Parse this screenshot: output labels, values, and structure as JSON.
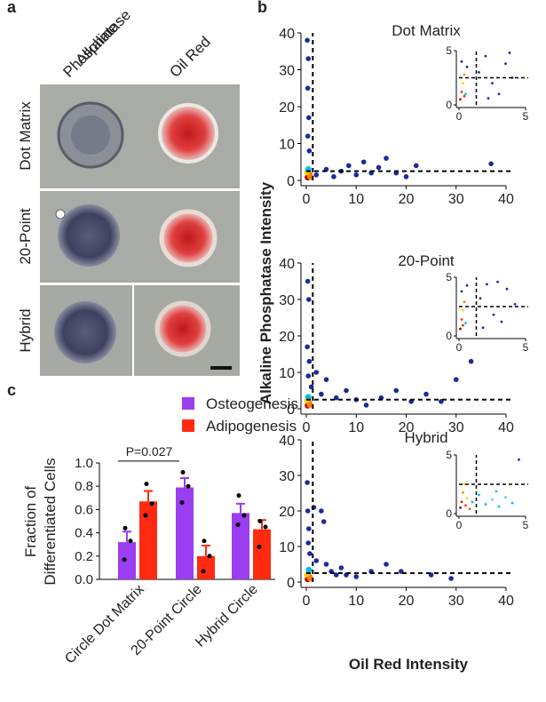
{
  "panel_labels": [
    "a",
    "b",
    "c"
  ],
  "panel_a": {
    "columns": [
      {
        "lines": [
          "Alkaline",
          "Phosphatase"
        ]
      },
      {
        "lines": [
          "Oil Red"
        ]
      }
    ],
    "rows": [
      "Dot Matrix",
      "20-Point",
      "Hybrid"
    ]
  },
  "shared_axes": {
    "ylabel": "Alkaline Phosphatase Intensity",
    "xlabel": "Oil Red Intensity"
  },
  "chart_data": [
    {
      "type": "scatter",
      "title": "Dot Matrix",
      "xlim": [
        0,
        40
      ],
      "ylim": [
        0,
        40
      ],
      "xticks": [
        0,
        10,
        20,
        30,
        40
      ],
      "yticks": [
        0,
        10,
        20,
        30,
        40
      ],
      "thresholds": {
        "x": 1.3,
        "y": 2.5
      },
      "series": [
        {
          "color": "#1b2a9a",
          "x": [
            0.2,
            0.4,
            0.3,
            0.5,
            0.3,
            0.6,
            2,
            4,
            5.5,
            7,
            8.5,
            10,
            11.5,
            13,
            14.5,
            16,
            18,
            20,
            22,
            37
          ],
          "values": [
            38,
            33,
            25,
            17,
            12,
            8,
            1.5,
            3,
            1,
            2.5,
            4,
            1.5,
            5,
            2,
            3.5,
            6,
            2,
            1,
            4,
            4.5
          ]
        },
        {
          "colors": [
            "#b00000",
            "#ff3000",
            "#ffd000",
            "#ff8000",
            "#00c0e0"
          ],
          "x": [
            0.3,
            0.6,
            0.2,
            0.8,
            0.4
          ],
          "values": [
            0.8,
            1.5,
            2.2,
            1,
            3
          ]
        }
      ],
      "inset": {
        "xlim": [
          0,
          5
        ],
        "ylim": [
          0,
          5
        ],
        "xticks": [
          0,
          5
        ],
        "yticks": [
          0,
          5
        ],
        "x": [
          0.1,
          0.2,
          0.3,
          0.4,
          0.5,
          0.6,
          0.2,
          0.4,
          1.5,
          2,
          2.5,
          3,
          3.5,
          4,
          2.2,
          3.8
        ],
        "values": [
          0.5,
          1.2,
          2,
          2.8,
          1,
          3.5,
          4,
          0.8,
          3,
          4.5,
          2,
          1,
          3.8,
          2.5,
          0.6,
          4.8
        ],
        "colors": [
          "#b00000",
          "#ff3000",
          "#ffd000",
          "#ff8000",
          "#00c0e0",
          "#1b2a9a",
          "#1b2a9a",
          "#e03000",
          "#1b2a9a",
          "#1b2a9a",
          "#1b2a9a",
          "#1b2a9a",
          "#1b2a9a",
          "#1b2a9a",
          "#1b2a9a",
          "#1b2a9a"
        ]
      }
    },
    {
      "type": "scatter",
      "title": "20-Point",
      "xlim": [
        0,
        40
      ],
      "ylim": [
        0,
        40
      ],
      "xticks": [
        0,
        10,
        20,
        30,
        40
      ],
      "yticks": [
        0,
        10,
        20,
        30,
        40
      ],
      "thresholds": {
        "x": 1.3,
        "y": 2.5
      },
      "series": [
        {
          "color": "#1b2a9a",
          "x": [
            0.3,
            0.5,
            0.2,
            0.6,
            0.4,
            1,
            2,
            3,
            4,
            6,
            8,
            10,
            12,
            15,
            18,
            21,
            24,
            27,
            30,
            33
          ],
          "values": [
            35,
            30,
            17,
            13,
            9,
            6,
            10,
            4,
            8,
            3,
            5,
            2.5,
            1,
            3,
            5,
            2,
            4,
            2,
            8,
            13
          ]
        },
        {
          "colors": [
            "#b00000",
            "#ff3000",
            "#ffd000",
            "#ff8000",
            "#00c0e0"
          ],
          "x": [
            0.3,
            0.5,
            0.2,
            0.7,
            0.4
          ],
          "values": [
            0.9,
            1.6,
            2.3,
            1.1,
            3.2
          ]
        }
      ],
      "inset": {
        "xlim": [
          0,
          5
        ],
        "ylim": [
          0,
          5
        ],
        "xticks": [
          0,
          5
        ],
        "yticks": [
          0,
          5
        ],
        "x": [
          0.1,
          0.2,
          0.3,
          0.4,
          0.5,
          0.2,
          0.6,
          0.3,
          1.6,
          2.1,
          2.6,
          3.2,
          3.6,
          4.2,
          1.8,
          2.9
        ],
        "values": [
          0.6,
          1.4,
          2.2,
          2.9,
          1.1,
          3.8,
          4.3,
          0.9,
          3.2,
          4.4,
          1.8,
          1.2,
          4,
          2.7,
          0.7,
          4.6
        ],
        "colors": [
          "#b00000",
          "#ff3000",
          "#ffd000",
          "#ff8000",
          "#00c0e0",
          "#1b2a9a",
          "#1b2a9a",
          "#e03000",
          "#1b2a9a",
          "#1b2a9a",
          "#1b2a9a",
          "#1b2a9a",
          "#1b2a9a",
          "#1b2a9a",
          "#1b2a9a",
          "#1b2a9a"
        ]
      }
    },
    {
      "type": "scatter",
      "title": "Hybrid",
      "xlim": [
        0,
        40
      ],
      "ylim": [
        0,
        40
      ],
      "xticks": [
        0,
        10,
        20,
        30,
        40
      ],
      "yticks": [
        0,
        10,
        20,
        30,
        40
      ],
      "thresholds": {
        "x": 1.3,
        "y": 2.5
      },
      "series": [
        {
          "color": "#1b2a9a",
          "x": [
            0.2,
            0.3,
            0.5,
            0.4,
            0.7,
            1.5,
            2,
            3,
            4,
            5,
            6,
            8,
            10,
            13,
            16,
            19,
            25,
            29,
            3.5,
            7
          ],
          "values": [
            28,
            20,
            15,
            11,
            8,
            21,
            6,
            20,
            5,
            3,
            2,
            2,
            1.5,
            3,
            5,
            3,
            2,
            1,
            17,
            4
          ]
        },
        {
          "colors": [
            "#b00000",
            "#ff3000",
            "#ffd000",
            "#ff8000",
            "#00c0e0"
          ],
          "x": [
            0.3,
            0.6,
            0.2,
            0.8,
            0.5
          ],
          "values": [
            0.8,
            1.4,
            2.1,
            1,
            3.4
          ]
        }
      ],
      "inset": {
        "xlim": [
          0,
          5
        ],
        "ylim": [
          0,
          5
        ],
        "xticks": [
          0,
          5
        ],
        "yticks": [
          0,
          5
        ],
        "x": [
          0.1,
          0.2,
          0.3,
          0.5,
          0.6,
          0.8,
          1,
          1.5,
          2,
          2.5,
          3,
          3.5,
          4,
          4.5,
          0.4,
          2.8
        ],
        "values": [
          0.5,
          1,
          1.8,
          0.7,
          1.3,
          0.4,
          1,
          1.6,
          0.8,
          1.2,
          0.6,
          1.4,
          0.9,
          4.6,
          2.5,
          1.9
        ],
        "colors": [
          "#b00000",
          "#e02000",
          "#ff8000",
          "#ff3000",
          "#ffd000",
          "#ff5000",
          "#00c0e0",
          "#00c0e0",
          "#00c0e0",
          "#40d0f0",
          "#00c0e0",
          "#40d0f0",
          "#00c0e0",
          "#1b2a9a",
          "#ffd000",
          "#00c0e0"
        ]
      }
    },
    {
      "type": "bar",
      "ylabel": [
        "Fraction of",
        "Differentiated Cells"
      ],
      "categories": [
        "Circle Dot Matrix",
        "20-Point Circle",
        "Hybrid Circle"
      ],
      "ylim": [
        0,
        1
      ],
      "yticks": [
        {
          "value": 0,
          "label": "0.0"
        },
        0.2,
        0.4,
        0.6,
        0.8,
        {
          "value": 1,
          "label": "1.0"
        }
      ],
      "series": [
        {
          "name": "Osteogenesis",
          "color": "#9b3df0",
          "values": [
            0.32,
            0.79,
            0.57
          ],
          "errors": [
            0.09,
            0.08,
            0.08
          ],
          "points": [
            [
              0.44,
              0.33,
              0.17
            ],
            [
              0.92,
              0.8,
              0.66
            ],
            [
              0.72,
              0.55,
              0.47
            ]
          ]
        },
        {
          "name": "Adipogenesis",
          "color": "#ff2a10",
          "values": [
            0.67,
            0.2,
            0.43
          ],
          "errors": [
            0.09,
            0.09,
            0.08
          ],
          "points": [
            [
              0.82,
              0.65,
              0.55
            ],
            [
              0.33,
              0.2,
              0.07
            ],
            [
              0.5,
              0.45,
              0.28
            ]
          ]
        }
      ],
      "annotation": "P=0.027"
    }
  ]
}
